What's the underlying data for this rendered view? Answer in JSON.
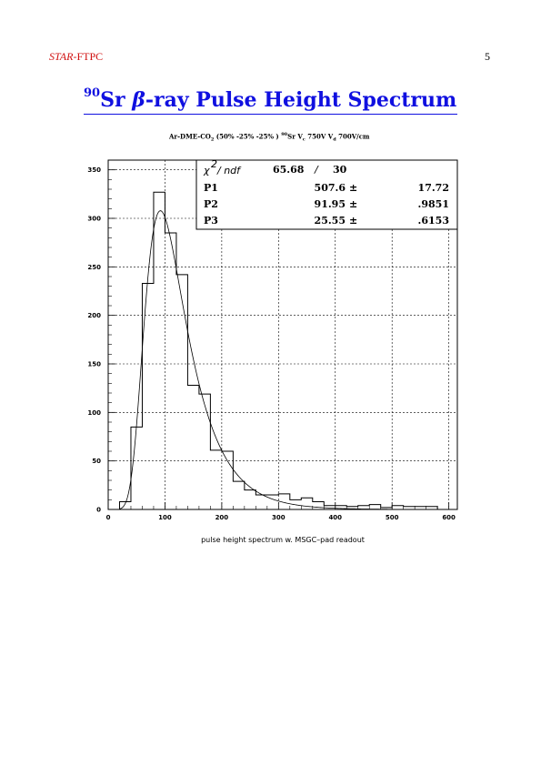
{
  "header": {
    "left_italic": "STAR",
    "left_rest": "-FTPC",
    "page_number": "5"
  },
  "title": {
    "superscript": "90",
    "element": "Sr",
    "beta": "β",
    "rest": "-ray Pulse Height Spectrum"
  },
  "subtitle": {
    "part1": "Ar-DME-CO",
    "sub1": "2",
    "part2": " (50% -25% -25% )  ",
    "sup1": "90",
    "part3": "Sr  V",
    "sub2": "c",
    "part4": "  750V  V",
    "sub3": "d",
    "part5": "  700V/cm"
  },
  "stats": {
    "chi_label": "χ",
    "chi_sup": "2",
    "ndf_label": "/ ndf",
    "chi_value": "65.68",
    "slash": "/",
    "ndf_value": "30",
    "rows": [
      {
        "name": "P1",
        "value": "507.6",
        "pm": "±",
        "error": "17.72"
      },
      {
        "name": "P2",
        "value": "91.95",
        "pm": "±",
        "error": ".9851"
      },
      {
        "name": "P3",
        "value": "25.55",
        "pm": "±",
        "error": ".6153"
      }
    ]
  },
  "chart_data": {
    "type": "bar",
    "xlabel": "pulse height spectrum w. MSGC–pad readout",
    "ylabel": "",
    "xlim": [
      0,
      615
    ],
    "ylim": [
      0,
      360
    ],
    "xticks": [
      "0",
      "100",
      "200",
      "300",
      "400",
      "500",
      "600"
    ],
    "yticks": [
      "0",
      "50",
      "100",
      "150",
      "200",
      "250",
      "300",
      "350"
    ],
    "grid": true,
    "histogram": {
      "bin_width": 20,
      "bin_edges_start": 20,
      "values": [
        8,
        85,
        233,
        327,
        285,
        242,
        128,
        119,
        61,
        60,
        29,
        20,
        15,
        15,
        16,
        10,
        12,
        8,
        4,
        4,
        3,
        4,
        5,
        2,
        4,
        3,
        3,
        3
      ]
    },
    "fit_function": {
      "type": "landau",
      "P1": 507.6,
      "P2": 91.95,
      "P3": 25.55
    }
  }
}
